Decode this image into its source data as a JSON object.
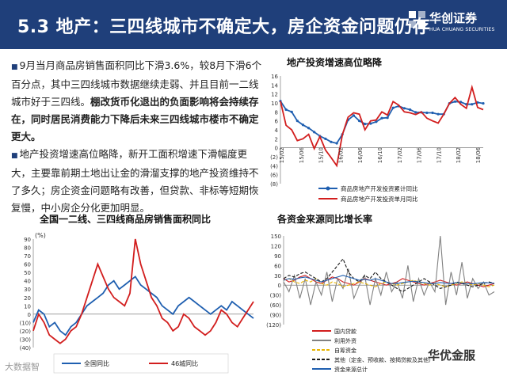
{
  "header": {
    "title": "5.3 地产：三四线城市不确定大，房企资金问题仍存"
  },
  "logo": {
    "cn": "华创证券",
    "en": "HUA CHUANG SECURITIES"
  },
  "paragraphs": {
    "p1_a": "9月当月商品房销售面积同比下滑3.6%，较8月下滑6个百分点，其中三四线城市数据继续走弱、并且目前一二线城市好于三四线。",
    "p1_b": "棚改货币化退出的负面影响将会持续存在，同时居民消费能力下降后未来三四线城市楼市不确定更大。",
    "p2": "地产投资增速高位略降，新开工面积增速下滑幅度更大，主要靠前期土地出让金的滑溜支撑的地产投资维持不了多久；房企资金问题略有改善，但贷款、非标等短期恢复慢，中小房企分化更加明显。"
  },
  "chart_data": [
    {
      "type": "line",
      "title": "地产投资增速高位略降",
      "x_ticks": [
        "15/02",
        "15/06",
        "15/10",
        "16/02",
        "16/06",
        "16/10",
        "17/02",
        "17/06",
        "17/10",
        "18/02",
        "18/06"
      ],
      "y_ticks": [
        "16",
        "14",
        "12",
        "10",
        "8",
        "6",
        "4",
        "2",
        "0",
        "(2)",
        "(4)",
        "(6)",
        "(8)"
      ],
      "ylim": [
        -8,
        16
      ],
      "series": [
        {
          "name": "商品房地产开发投资累计同比",
          "color": "#1f5fb0",
          "values": [
            10.4,
            8.5,
            8.0,
            6.0,
            5.1,
            4.4,
            3.5,
            2.6,
            2.0,
            1.3,
            1.0,
            3.0,
            6.2,
            7.2,
            6.0,
            5.3,
            5.4,
            5.8,
            6.6,
            6.7,
            8.9,
            9.3,
            8.8,
            8.5,
            7.9,
            7.9,
            7.8,
            7.8,
            7.5,
            7.5,
            9.9,
            10.3,
            10.2,
            9.7,
            9.7,
            10.1,
            9.9
          ]
        },
        {
          "name": "商品房地产开发投资单月同比",
          "color": "#d21e1e",
          "values": [
            10.4,
            5.0,
            4.0,
            1.6,
            2.0,
            3.0,
            -0.2,
            2.5,
            -0.5,
            -2.2,
            -4.0,
            2.9,
            6.8,
            7.8,
            7.5,
            4.0,
            6.0,
            6.2,
            8.0,
            7.3,
            10.3,
            9.5,
            8.0,
            7.8,
            7.4,
            8.0,
            6.6,
            6.0,
            5.5,
            7.5,
            9.9,
            11.2,
            9.7,
            8.8,
            13.5,
            9.0,
            8.5
          ]
        }
      ]
    },
    {
      "type": "line",
      "title": "全国一二线、三四线商品房销售面积同比",
      "y_unit": "(%)",
      "y_ticks": [
        "90",
        "80",
        "70",
        "60",
        "50",
        "40",
        "30",
        "20",
        "10",
        "0",
        "(10)",
        "(20)",
        "(30)",
        "(40)"
      ],
      "ylim": [
        -40,
        90
      ],
      "series": [
        {
          "name": "全国同比",
          "color": "#1f5fb0",
          "values": [
            -10,
            5,
            0,
            -15,
            -10,
            -20,
            -25,
            -15,
            -10,
            0,
            10,
            15,
            20,
            25,
            35,
            40,
            30,
            35,
            40,
            45,
            35,
            30,
            25,
            20,
            10,
            5,
            0,
            10,
            15,
            20,
            15,
            10,
            5,
            0,
            5,
            10,
            5,
            15,
            10,
            5,
            0,
            -5
          ]
        },
        {
          "name": "46城同比",
          "color": "#d21e1e",
          "values": [
            -20,
            0,
            -10,
            -25,
            -30,
            -35,
            -30,
            -20,
            -15,
            0,
            20,
            40,
            60,
            45,
            30,
            20,
            15,
            10,
            25,
            90,
            60,
            40,
            20,
            10,
            -5,
            -10,
            -20,
            -15,
            0,
            -5,
            -15,
            -20,
            -25,
            -20,
            -10,
            5,
            0,
            -10,
            -15,
            -5,
            5,
            15
          ]
        }
      ]
    },
    {
      "type": "line",
      "title": "各资金来源同比增长率",
      "y_ticks": [
        "150",
        "120",
        "90",
        "60",
        "30",
        "0",
        "(30)",
        "(60)",
        "(90)",
        "(120)"
      ],
      "ylim": [
        -120,
        150
      ],
      "series": [
        {
          "name": "国内贷款",
          "color": "#d21e1e",
          "values": [
            20,
            10,
            15,
            25,
            30,
            20,
            10,
            5,
            15,
            25,
            20,
            10,
            5,
            0,
            10,
            20,
            15,
            10,
            5,
            0,
            5,
            10,
            20,
            15,
            10,
            5,
            0,
            5,
            10,
            15,
            10,
            5,
            0,
            5,
            10,
            5,
            0,
            -5,
            0,
            5
          ]
        },
        {
          "name": "利用外资",
          "color": "#808080",
          "values": [
            10,
            -20,
            30,
            -40,
            20,
            -60,
            10,
            -30,
            40,
            -50,
            20,
            -10,
            50,
            -40,
            0,
            30,
            -60,
            20,
            -30,
            40,
            -20,
            10,
            -40,
            60,
            -50,
            20,
            -30,
            10,
            -20,
            150,
            -60,
            40,
            -30,
            70,
            -40,
            20,
            -10,
            10,
            -30,
            -20
          ]
        },
        {
          "name": "自筹资金",
          "color": "#e8b400",
          "values": [
            15,
            20,
            10,
            5,
            15,
            10,
            20,
            5,
            0,
            10,
            5,
            -5,
            0,
            5,
            10,
            5,
            0,
            -5,
            5,
            10,
            5,
            0,
            5,
            10,
            15,
            10,
            5,
            0,
            5,
            0,
            -5,
            0,
            5,
            10,
            5,
            0,
            5,
            0,
            -5,
            0
          ]
        },
        {
          "name": "其他（定金、预收款、按揭贷款及其他）",
          "color": "#1a1a1a",
          "values": [
            20,
            30,
            25,
            35,
            40,
            30,
            20,
            10,
            20,
            40,
            60,
            80,
            40,
            20,
            10,
            30,
            20,
            40,
            20,
            10,
            0,
            -10,
            -20,
            -10,
            0,
            10,
            20,
            10,
            0,
            -10,
            -5,
            0,
            10,
            5,
            0,
            -5,
            0,
            5,
            10,
            5
          ]
        },
        {
          "name": "资金来源总计",
          "color": "#1f5fb0",
          "values": [
            15,
            20,
            18,
            22,
            25,
            20,
            15,
            10,
            15,
            20,
            25,
            30,
            25,
            20,
            15,
            18,
            15,
            20,
            15,
            10,
            5,
            5,
            8,
            10,
            12,
            10,
            8,
            5,
            5,
            8,
            6,
            5,
            8,
            6,
            5,
            4,
            6,
            8,
            7,
            6
          ]
        }
      ]
    }
  ],
  "watermarks": {
    "left": "大数据智",
    "right": "华优金服"
  }
}
